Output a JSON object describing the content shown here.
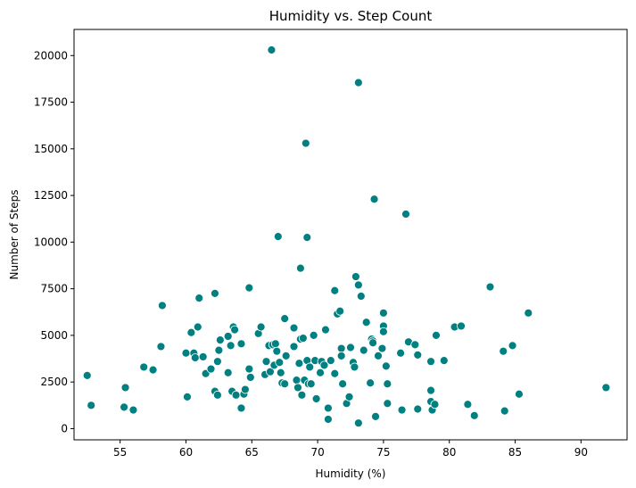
{
  "chart_data": {
    "type": "scatter",
    "title": "Humidity vs. Step Count",
    "xlabel": "Humidity (%)",
    "ylabel": "Number of Steps",
    "xlim": [
      51.5,
      93.5
    ],
    "ylim": [
      -600,
      21400
    ],
    "xticks": [
      55,
      60,
      65,
      70,
      75,
      80,
      85,
      90
    ],
    "xtick_labels": [
      "55",
      "60",
      "65",
      "70",
      "75",
      "80",
      "85",
      "90"
    ],
    "yticks": [
      0,
      2500,
      5000,
      7500,
      10000,
      12500,
      15000,
      17500,
      20000
    ],
    "ytick_labels": [
      "0",
      "2500",
      "5000",
      "7500",
      "10000",
      "12500",
      "15000",
      "17500",
      "20000"
    ],
    "grid": false,
    "legend": false,
    "color": "#008080",
    "points": [
      {
        "x": 52.5,
        "y": 2850
      },
      {
        "x": 52.8,
        "y": 1250
      },
      {
        "x": 55.4,
        "y": 2200
      },
      {
        "x": 55.3,
        "y": 1150
      },
      {
        "x": 56.0,
        "y": 1000
      },
      {
        "x": 56.8,
        "y": 3300
      },
      {
        "x": 57.5,
        "y": 3150
      },
      {
        "x": 58.1,
        "y": 4400
      },
      {
        "x": 58.2,
        "y": 6600
      },
      {
        "x": 60.0,
        "y": 4050
      },
      {
        "x": 60.1,
        "y": 1700
      },
      {
        "x": 60.4,
        "y": 5150
      },
      {
        "x": 60.6,
        "y": 4050
      },
      {
        "x": 60.7,
        "y": 3800
      },
      {
        "x": 60.9,
        "y": 5450
      },
      {
        "x": 61.0,
        "y": 7000
      },
      {
        "x": 61.3,
        "y": 3850
      },
      {
        "x": 61.5,
        "y": 2950
      },
      {
        "x": 61.9,
        "y": 3200
      },
      {
        "x": 62.2,
        "y": 7250
      },
      {
        "x": 62.2,
        "y": 2000
      },
      {
        "x": 62.4,
        "y": 3600
      },
      {
        "x": 62.4,
        "y": 1800
      },
      {
        "x": 62.5,
        "y": 4200
      },
      {
        "x": 62.6,
        "y": 4750
      },
      {
        "x": 63.2,
        "y": 3000
      },
      {
        "x": 63.2,
        "y": 4950
      },
      {
        "x": 63.4,
        "y": 4450
      },
      {
        "x": 63.5,
        "y": 2000
      },
      {
        "x": 63.6,
        "y": 5450
      },
      {
        "x": 63.7,
        "y": 5300
      },
      {
        "x": 63.8,
        "y": 1800
      },
      {
        "x": 64.2,
        "y": 4550
      },
      {
        "x": 64.2,
        "y": 1100
      },
      {
        "x": 64.4,
        "y": 1850
      },
      {
        "x": 64.5,
        "y": 2100
      },
      {
        "x": 64.8,
        "y": 7550
      },
      {
        "x": 64.8,
        "y": 3200
      },
      {
        "x": 64.9,
        "y": 2750
      },
      {
        "x": 65.5,
        "y": 5100
      },
      {
        "x": 65.7,
        "y": 5450
      },
      {
        "x": 66.0,
        "y": 2900
      },
      {
        "x": 66.1,
        "y": 3600
      },
      {
        "x": 66.3,
        "y": 4450
      },
      {
        "x": 66.4,
        "y": 3050
      },
      {
        "x": 66.5,
        "y": 20300
      },
      {
        "x": 66.6,
        "y": 4500
      },
      {
        "x": 66.7,
        "y": 3400
      },
      {
        "x": 66.8,
        "y": 4550
      },
      {
        "x": 66.9,
        "y": 4150
      },
      {
        "x": 67.0,
        "y": 10300
      },
      {
        "x": 67.1,
        "y": 3550
      },
      {
        "x": 67.2,
        "y": 3000
      },
      {
        "x": 67.3,
        "y": 2450
      },
      {
        "x": 67.5,
        "y": 2400
      },
      {
        "x": 67.5,
        "y": 5900
      },
      {
        "x": 67.6,
        "y": 3900
      },
      {
        "x": 68.2,
        "y": 5400
      },
      {
        "x": 68.2,
        "y": 4400
      },
      {
        "x": 68.4,
        "y": 2600
      },
      {
        "x": 68.5,
        "y": 2200
      },
      {
        "x": 68.6,
        "y": 3500
      },
      {
        "x": 68.7,
        "y": 8600
      },
      {
        "x": 68.7,
        "y": 4800
      },
      {
        "x": 68.8,
        "y": 1800
      },
      {
        "x": 68.9,
        "y": 4850
      },
      {
        "x": 69.0,
        "y": 2600
      },
      {
        "x": 69.1,
        "y": 15300
      },
      {
        "x": 69.2,
        "y": 10250
      },
      {
        "x": 69.2,
        "y": 3650
      },
      {
        "x": 69.3,
        "y": 2400
      },
      {
        "x": 69.4,
        "y": 3300
      },
      {
        "x": 69.5,
        "y": 2400
      },
      {
        "x": 69.7,
        "y": 5000
      },
      {
        "x": 69.8,
        "y": 3650
      },
      {
        "x": 69.9,
        "y": 1600
      },
      {
        "x": 70.2,
        "y": 3000
      },
      {
        "x": 70.3,
        "y": 3600
      },
      {
        "x": 70.5,
        "y": 3400
      },
      {
        "x": 70.6,
        "y": 5300
      },
      {
        "x": 70.8,
        "y": 1100
      },
      {
        "x": 70.8,
        "y": 500
      },
      {
        "x": 71.0,
        "y": 3650
      },
      {
        "x": 71.3,
        "y": 7400
      },
      {
        "x": 71.3,
        "y": 2950
      },
      {
        "x": 71.5,
        "y": 6150
      },
      {
        "x": 71.7,
        "y": 6300
      },
      {
        "x": 71.8,
        "y": 4300
      },
      {
        "x": 71.8,
        "y": 3900
      },
      {
        "x": 71.9,
        "y": 2400
      },
      {
        "x": 72.2,
        "y": 1350
      },
      {
        "x": 72.4,
        "y": 1700
      },
      {
        "x": 72.5,
        "y": 4350
      },
      {
        "x": 72.7,
        "y": 3550
      },
      {
        "x": 72.8,
        "y": 3300
      },
      {
        "x": 72.9,
        "y": 8150
      },
      {
        "x": 73.1,
        "y": 7700
      },
      {
        "x": 73.1,
        "y": 18550
      },
      {
        "x": 73.1,
        "y": 300
      },
      {
        "x": 73.3,
        "y": 7100
      },
      {
        "x": 73.5,
        "y": 4200
      },
      {
        "x": 73.7,
        "y": 5700
      },
      {
        "x": 74.0,
        "y": 2450
      },
      {
        "x": 74.1,
        "y": 4800
      },
      {
        "x": 74.2,
        "y": 4700
      },
      {
        "x": 74.2,
        "y": 4600
      },
      {
        "x": 74.3,
        "y": 12300
      },
      {
        "x": 74.4,
        "y": 650
      },
      {
        "x": 74.6,
        "y": 3900
      },
      {
        "x": 74.9,
        "y": 4300
      },
      {
        "x": 75.0,
        "y": 6200
      },
      {
        "x": 75.0,
        "y": 5500
      },
      {
        "x": 75.0,
        "y": 5200
      },
      {
        "x": 75.2,
        "y": 3350
      },
      {
        "x": 75.3,
        "y": 2400
      },
      {
        "x": 75.3,
        "y": 1350
      },
      {
        "x": 76.3,
        "y": 4050
      },
      {
        "x": 76.4,
        "y": 1000
      },
      {
        "x": 76.7,
        "y": 11500
      },
      {
        "x": 76.9,
        "y": 4650
      },
      {
        "x": 77.4,
        "y": 4500
      },
      {
        "x": 77.6,
        "y": 3950
      },
      {
        "x": 77.6,
        "y": 1050
      },
      {
        "x": 78.6,
        "y": 3600
      },
      {
        "x": 78.6,
        "y": 2050
      },
      {
        "x": 78.6,
        "y": 1450
      },
      {
        "x": 78.7,
        "y": 1000
      },
      {
        "x": 78.9,
        "y": 1300
      },
      {
        "x": 79.0,
        "y": 5000
      },
      {
        "x": 79.6,
        "y": 3650
      },
      {
        "x": 80.4,
        "y": 5450
      },
      {
        "x": 80.9,
        "y": 5500
      },
      {
        "x": 81.4,
        "y": 1300
      },
      {
        "x": 81.9,
        "y": 700
      },
      {
        "x": 83.1,
        "y": 7600
      },
      {
        "x": 84.1,
        "y": 4150
      },
      {
        "x": 84.2,
        "y": 950
      },
      {
        "x": 84.8,
        "y": 4450
      },
      {
        "x": 85.3,
        "y": 1850
      },
      {
        "x": 86.0,
        "y": 6200
      },
      {
        "x": 91.9,
        "y": 2200
      }
    ]
  }
}
